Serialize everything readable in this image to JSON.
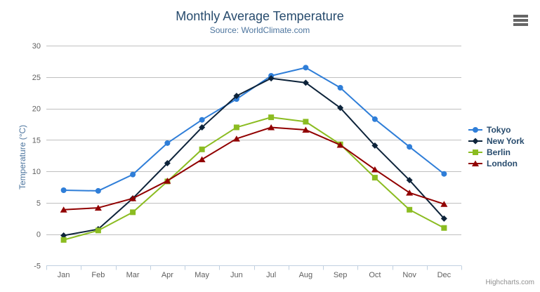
{
  "chart_data": {
    "type": "line",
    "title": "Monthly Average Temperature",
    "subtitle": "Source: WorldClimate.com",
    "xlabel": "",
    "ylabel": "Temperature (°C)",
    "categories": [
      "Jan",
      "Feb",
      "Mar",
      "Apr",
      "May",
      "Jun",
      "Jul",
      "Aug",
      "Sep",
      "Oct",
      "Nov",
      "Dec"
    ],
    "series": [
      {
        "name": "Tokyo",
        "color": "#2f7ed8",
        "marker": "circle",
        "values": [
          7.0,
          6.9,
          9.5,
          14.5,
          18.2,
          21.5,
          25.2,
          26.5,
          23.3,
          18.3,
          13.9,
          9.6
        ]
      },
      {
        "name": "New York",
        "color": "#0d233a",
        "marker": "diamond",
        "values": [
          -0.2,
          0.8,
          5.7,
          11.3,
          17.0,
          22.0,
          24.8,
          24.1,
          20.1,
          14.1,
          8.6,
          2.5
        ]
      },
      {
        "name": "Berlin",
        "color": "#8bbc21",
        "marker": "square",
        "values": [
          -0.9,
          0.6,
          3.5,
          8.4,
          13.5,
          17.0,
          18.6,
          17.9,
          14.3,
          9.0,
          3.9,
          1.0
        ]
      },
      {
        "name": "London",
        "color": "#910000",
        "marker": "triangle",
        "values": [
          3.9,
          4.2,
          5.7,
          8.5,
          11.9,
          15.2,
          17.0,
          16.6,
          14.2,
          10.3,
          6.6,
          4.8
        ]
      }
    ],
    "ylim": [
      -5,
      30
    ],
    "ytick_interval": 5,
    "grid": true,
    "legend_position": "right",
    "colors": {
      "grid_line": "#c0c0c0",
      "axis_line": "#c0d0e0",
      "tick_label": "#606060",
      "title": "#274b6d",
      "subtitle": "#4d759e",
      "legend_text": "#274b6d",
      "credits_text": "#909090"
    }
  },
  "credits": {
    "label": "Highcharts.com"
  }
}
